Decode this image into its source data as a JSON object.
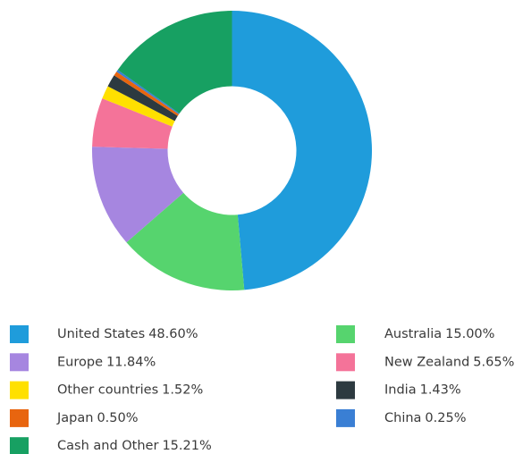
{
  "chart_data": {
    "type": "donut",
    "categories": [
      "United States",
      "Australia",
      "Europe",
      "New Zealand",
      "Other countries",
      "India",
      "Japan",
      "China",
      "Cash and Other"
    ],
    "values": [
      48.6,
      15.0,
      11.84,
      5.65,
      1.52,
      1.43,
      0.5,
      0.25,
      15.21
    ],
    "value_labels": [
      "48.60%",
      "15.00%",
      "11.84%",
      "5.65%",
      "1.52%",
      "1.43%",
      "0.50%",
      "0.25%",
      "15.21%"
    ],
    "colors": [
      "#1f9cdb",
      "#56d46e",
      "#a686e0",
      "#f47399",
      "#ffe000",
      "#2d3a40",
      "#e8650f",
      "#3a7fd4",
      "#17a062"
    ]
  }
}
